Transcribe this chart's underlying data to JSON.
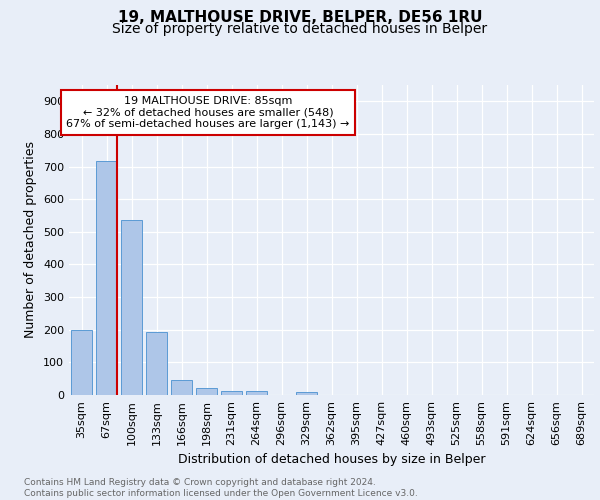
{
  "title1": "19, MALTHOUSE DRIVE, BELPER, DE56 1RU",
  "title2": "Size of property relative to detached houses in Belper",
  "xlabel": "Distribution of detached houses by size in Belper",
  "ylabel": "Number of detached properties",
  "footnote": "Contains HM Land Registry data © Crown copyright and database right 2024.\nContains public sector information licensed under the Open Government Licence v3.0.",
  "categories": [
    "35sqm",
    "67sqm",
    "100sqm",
    "133sqm",
    "166sqm",
    "198sqm",
    "231sqm",
    "264sqm",
    "296sqm",
    "329sqm",
    "362sqm",
    "395sqm",
    "427sqm",
    "460sqm",
    "493sqm",
    "525sqm",
    "558sqm",
    "591sqm",
    "624sqm",
    "656sqm",
    "689sqm"
  ],
  "values": [
    200,
    716,
    537,
    192,
    46,
    22,
    13,
    11,
    0,
    10,
    0,
    0,
    0,
    0,
    0,
    0,
    0,
    0,
    0,
    0,
    0
  ],
  "bar_color": "#aec6e8",
  "bar_edge_color": "#5b9bd5",
  "property_line_color": "#cc0000",
  "annotation_text": "19 MALTHOUSE DRIVE: 85sqm\n← 32% of detached houses are smaller (548)\n67% of semi-detached houses are larger (1,143) →",
  "annotation_box_color": "#ffffff",
  "annotation_box_edge_color": "#cc0000",
  "ylim": [
    0,
    950
  ],
  "yticks": [
    0,
    100,
    200,
    300,
    400,
    500,
    600,
    700,
    800,
    900
  ],
  "background_color": "#e8eef8",
  "plot_bg_color": "#e8eef8",
  "title1_fontsize": 11,
  "title2_fontsize": 10,
  "axis_fontsize": 9,
  "tick_fontsize": 8,
  "footnote_fontsize": 6.5,
  "footnote_color": "#666666"
}
